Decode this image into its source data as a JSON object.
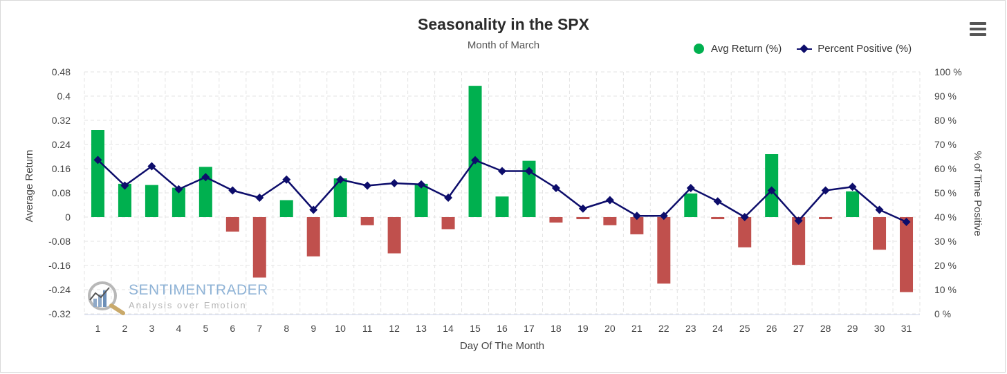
{
  "chart_data": {
    "type": "bar+line",
    "title": "Seasonality in the SPX",
    "subtitle": "Month of March",
    "xlabel": "Day Of The Month",
    "ylabel_left": "Average Return",
    "ylabel_right": "% of Time Positive",
    "categories": [
      "1",
      "2",
      "3",
      "4",
      "5",
      "6",
      "7",
      "8",
      "9",
      "10",
      "11",
      "12",
      "13",
      "14",
      "15",
      "16",
      "17",
      "18",
      "19",
      "20",
      "21",
      "22",
      "23",
      "24",
      "25",
      "26",
      "27",
      "28",
      "29",
      "30",
      "31"
    ],
    "ylim_left": [
      -0.32,
      0.48
    ],
    "ylim_right": [
      0,
      100
    ],
    "left_ticks": [
      "0.48",
      "0.4",
      "0.32",
      "0.24",
      "0.16",
      "0.08",
      "0",
      "-0.08",
      "-0.16",
      "-0.24",
      "-0.32"
    ],
    "right_ticks": [
      "100 %",
      "90 %",
      "80 %",
      "70 %",
      "60 %",
      "50 %",
      "40 %",
      "30 %",
      "20 %",
      "10 %",
      "0 %"
    ],
    "grid": true,
    "legend_position": "top-right",
    "series": [
      {
        "name": "Avg Return (%)",
        "type": "bar",
        "axis": "left",
        "values": [
          0.288,
          0.11,
          0.106,
          0.097,
          0.166,
          -0.048,
          -0.2,
          0.056,
          -0.13,
          0.128,
          -0.027,
          -0.12,
          0.11,
          -0.04,
          0.434,
          0.068,
          0.186,
          -0.018,
          -0.007,
          -0.027,
          -0.057,
          -0.22,
          0.078,
          -0.007,
          -0.1,
          0.208,
          -0.158,
          -0.007,
          0.085,
          -0.108,
          -0.248
        ]
      },
      {
        "name": "Percent Positive (%)",
        "type": "line",
        "axis": "right",
        "values": [
          63.6,
          53.0,
          61.0,
          51.5,
          56.5,
          51.0,
          48.0,
          55.5,
          43.0,
          55.5,
          53.0,
          54.0,
          53.5,
          48.0,
          63.5,
          59.0,
          59.0,
          52.0,
          43.5,
          47.0,
          40.5,
          40.5,
          52.0,
          46.5,
          40.0,
          51.0,
          38.5,
          51.0,
          52.5,
          43.0,
          38.0
        ]
      }
    ]
  },
  "colors": {
    "positive_bar": "#00b04f",
    "negative_bar": "#c0504d",
    "line": "#0d0d6b",
    "grid": "#e3e3e3"
  },
  "legend": {
    "avg_return": "Avg Return (%)",
    "percent_positive": "Percent Positive (%)"
  },
  "watermark": {
    "brand": "SENTIMENTRADER",
    "tagline": "Analysis over Emotion",
    "icon": "magnifier-chart-icon"
  },
  "menu": {
    "icon": "hamburger-menu-icon"
  }
}
